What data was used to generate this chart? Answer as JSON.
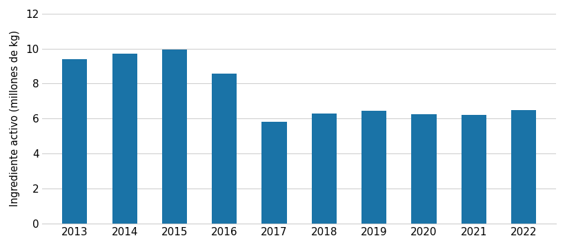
{
  "years": [
    "2013",
    "2014",
    "2015",
    "2016",
    "2017",
    "2018",
    "2019",
    "2020",
    "2021",
    "2022"
  ],
  "values": [
    9.41,
    9.72,
    9.94,
    8.55,
    5.83,
    6.29,
    6.45,
    6.24,
    6.2,
    6.5
  ],
  "bar_color": "#1a73a7",
  "ylabel": "Ingrediente activo (millones de kg)",
  "ylim": [
    0,
    12
  ],
  "yticks": [
    0,
    2,
    4,
    6,
    8,
    10,
    12
  ],
  "background_color": "#ffffff",
  "grid_color": "#d0d0d0",
  "bar_width": 0.5,
  "tick_fontsize": 11,
  "ylabel_fontsize": 10.5
}
